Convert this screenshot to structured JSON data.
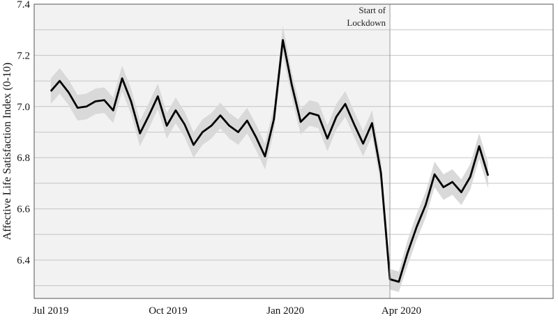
{
  "chart_data": {
    "type": "line",
    "ylabel": "Affective Life Satisfaction Index (0-10)",
    "ylim": [
      6.25,
      7.4
    ],
    "yticks": [
      6.4,
      6.6,
      6.8,
      7.0,
      7.2,
      7.4
    ],
    "ytick_labels": [
      "6.4",
      "6.6",
      "6.8",
      "7.0",
      "7.2",
      "7.4"
    ],
    "xticks": [
      {
        "label": "Jul 2019",
        "date": "2019-07-01"
      },
      {
        "label": "Oct 2019",
        "date": "2019-10-01"
      },
      {
        "label": "Jan 2020",
        "date": "2020-01-01"
      },
      {
        "label": "Apr 2020",
        "date": "2020-04-01"
      }
    ],
    "xlim": [
      "2019-06-18",
      "2020-07-29"
    ],
    "lockdown": {
      "date": "2020-03-23",
      "label_line1": "Start of",
      "label_line2": "Lockdown"
    },
    "colors": {
      "line": "#000000",
      "band": "#d9d9d9",
      "pre_lockdown_bg": "#f2f2f2",
      "grid": "#c4c4c4",
      "marker_line": "#9a9a9a"
    },
    "grid": true,
    "series": [
      {
        "x": [
          "2019-07-01",
          "2019-07-08",
          "2019-07-15",
          "2019-07-22",
          "2019-07-29",
          "2019-08-05",
          "2019-08-12",
          "2019-08-19",
          "2019-08-26",
          "2019-09-02",
          "2019-09-09",
          "2019-09-16",
          "2019-09-23",
          "2019-09-30",
          "2019-10-07",
          "2019-10-14",
          "2019-10-21",
          "2019-10-28",
          "2019-11-04",
          "2019-11-11",
          "2019-11-18",
          "2019-11-25",
          "2019-12-02",
          "2019-12-09",
          "2019-12-16",
          "2019-12-23",
          "2019-12-30",
          "2020-01-06",
          "2020-01-13",
          "2020-01-20",
          "2020-01-27",
          "2020-02-03",
          "2020-02-10",
          "2020-02-17",
          "2020-02-24",
          "2020-03-02",
          "2020-03-09",
          "2020-03-16",
          "2020-03-23",
          "2020-03-30",
          "2020-04-06",
          "2020-04-13",
          "2020-04-20",
          "2020-04-27",
          "2020-05-04",
          "2020-05-11",
          "2020-05-18",
          "2020-05-25",
          "2020-06-01",
          "2020-06-08",
          "2020-06-15",
          "2020-06-22"
        ],
        "y": [
          7.06,
          7.1,
          7.055,
          6.995,
          7.0,
          7.02,
          7.025,
          6.985,
          7.11,
          7.02,
          6.895,
          6.965,
          7.04,
          6.925,
          6.985,
          6.93,
          6.85,
          6.9,
          6.925,
          6.965,
          6.925,
          6.9,
          6.945,
          6.88,
          6.805,
          6.95,
          7.26,
          7.085,
          6.94,
          6.975,
          6.965,
          6.875,
          6.96,
          7.01,
          6.93,
          6.855,
          6.935,
          6.74,
          6.325,
          6.315,
          6.43,
          6.53,
          6.615,
          6.735,
          6.685,
          6.705,
          6.665,
          6.725,
          6.845,
          6.73,
          null,
          null
        ],
        "band_halfwidth": [
          0.05,
          0.05,
          0.05,
          0.05,
          0.05,
          0.05,
          0.05,
          0.05,
          0.05,
          0.05,
          0.05,
          0.05,
          0.05,
          0.05,
          0.05,
          0.05,
          0.05,
          0.05,
          0.05,
          0.05,
          0.05,
          0.05,
          0.05,
          0.05,
          0.05,
          0.05,
          0.055,
          0.05,
          0.05,
          0.05,
          0.05,
          0.05,
          0.05,
          0.05,
          0.05,
          0.05,
          0.05,
          0.05,
          0.04,
          0.04,
          0.05,
          0.05,
          0.05,
          0.05,
          0.05,
          0.05,
          0.05,
          0.05,
          0.05,
          0.05,
          null,
          null
        ]
      }
    ]
  }
}
